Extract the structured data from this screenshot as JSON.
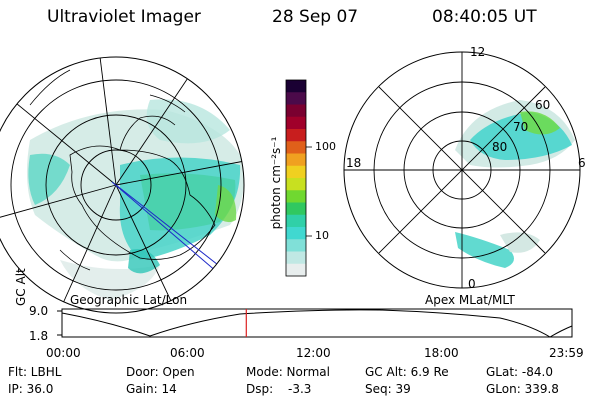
{
  "header": {
    "instrument": "Ultraviolet Imager",
    "date": "28 Sep 07",
    "time": "08:40:05 UT"
  },
  "left_panel": {
    "caption": "Geographic Lat/Lon"
  },
  "right_panel": {
    "caption": "Apex MLat/MLT",
    "mlt_labels": {
      "top": "12",
      "right": "6",
      "bottom": "0",
      "left": "18"
    },
    "lat_labels": [
      "60",
      "70",
      "80"
    ]
  },
  "colorbar": {
    "unit_label": "photon cm⁻²s⁻¹",
    "tick_labels": [
      "100",
      "10"
    ],
    "colors": [
      "#1a0033",
      "#4b0a4a",
      "#7a0030",
      "#a0002a",
      "#c81e1e",
      "#e0601a",
      "#f0a020",
      "#f0d020",
      "#c8e020",
      "#70d830",
      "#30c860",
      "#30d0a8",
      "#40d8d0",
      "#80e0d8",
      "#c0e8e4",
      "#e8eeee"
    ]
  },
  "altitude_strip": {
    "ylabel": "GC Alt",
    "y_ticks": [
      "9.0",
      "1.8"
    ],
    "x_ticks": [
      "00:00",
      "06:00",
      "12:00",
      "18:00",
      "23:59"
    ],
    "current_time_marker": "08:40",
    "marker_color": "#dd2020"
  },
  "status": {
    "flt": "Flt: LBHL",
    "ip": "IP: 36.0",
    "door": "Door: Open",
    "gain": "Gain: 14",
    "mode": "Mode: Normal",
    "dsp_label": "Dsp:",
    "dsp_value": "-3.3",
    "gc_alt": "GC Alt: 6.9 Re",
    "seq": "Seq: 39",
    "glat": "GLat: -84.0",
    "glon": "GLon: 339.8"
  }
}
